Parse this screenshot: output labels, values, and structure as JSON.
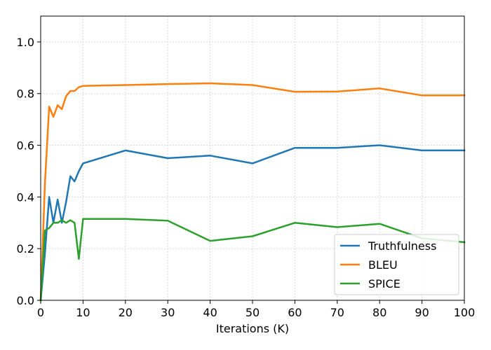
{
  "chart_data": {
    "type": "line",
    "title": "",
    "xlabel": "Iterations (K)",
    "ylabel": "",
    "xlim": [
      0,
      100
    ],
    "ylim": [
      0,
      1.1
    ],
    "xticks": [
      0,
      10,
      20,
      30,
      40,
      50,
      60,
      70,
      80,
      90,
      100
    ],
    "xtick_labels": [
      "0",
      "10",
      "20",
      "30",
      "40",
      "50",
      "60",
      "70",
      "80",
      "90",
      "100"
    ],
    "yticks": [
      0.0,
      0.2,
      0.4,
      0.6,
      0.8,
      1.0
    ],
    "ytick_labels": [
      "0.0",
      "0.2",
      "0.4",
      "0.6",
      "0.8",
      "1.0"
    ],
    "grid": true,
    "legend_position": "bottom-right",
    "series": [
      {
        "name": "Truthfulness",
        "color": "#1f77b4",
        "x": [
          0,
          1,
          2,
          3,
          4,
          5,
          6,
          7,
          8,
          9,
          10,
          20,
          30,
          40,
          50,
          60,
          70,
          80,
          90,
          100
        ],
        "y": [
          0.0,
          0.18,
          0.4,
          0.3,
          0.39,
          0.3,
          0.38,
          0.48,
          0.46,
          0.5,
          0.53,
          0.58,
          0.55,
          0.56,
          0.53,
          0.59,
          0.59,
          0.6,
          0.58,
          0.58
        ]
      },
      {
        "name": "BLEU",
        "color": "#ff7f0e",
        "x": [
          0,
          1,
          2,
          3,
          4,
          5,
          6,
          7,
          8,
          9,
          10,
          20,
          30,
          40,
          50,
          60,
          70,
          80,
          90,
          100
        ],
        "y": [
          0.0,
          0.45,
          0.75,
          0.71,
          0.755,
          0.74,
          0.79,
          0.81,
          0.81,
          0.825,
          0.83,
          0.833,
          0.837,
          0.84,
          0.833,
          0.807,
          0.808,
          0.82,
          0.793,
          0.793
        ]
      },
      {
        "name": "SPICE",
        "color": "#2ca02c",
        "x": [
          0,
          1,
          2,
          3,
          4,
          5,
          6,
          7,
          8,
          9,
          10,
          20,
          30,
          40,
          50,
          60,
          70,
          80,
          90,
          100
        ],
        "y": [
          0.0,
          0.27,
          0.28,
          0.3,
          0.3,
          0.31,
          0.3,
          0.31,
          0.3,
          0.16,
          0.315,
          0.315,
          0.308,
          0.23,
          0.248,
          0.3,
          0.283,
          0.296,
          0.24,
          0.225
        ]
      }
    ]
  }
}
